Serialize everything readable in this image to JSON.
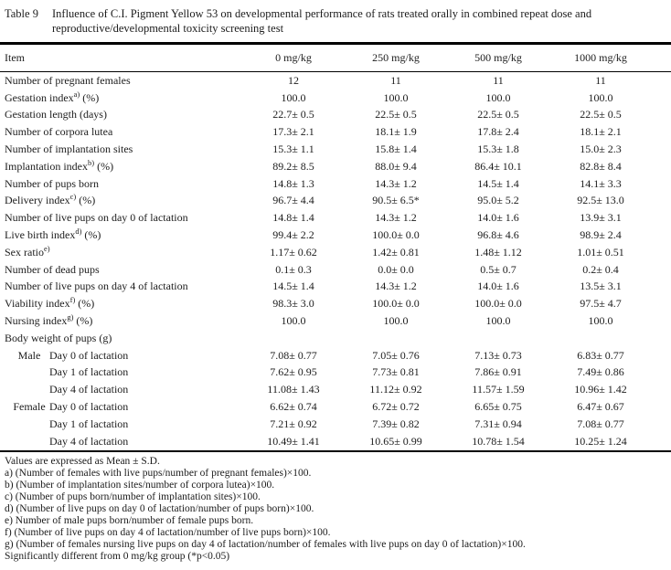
{
  "caption": {
    "label": "Table 9",
    "text": "Influence of C.I. Pigment Yellow 53 on developmental performance of rats treated orally in combined repeat dose and reproductive/developmental toxicity screening test"
  },
  "table": {
    "item_header": "Item",
    "columns": [
      "0 mg/kg",
      "250 mg/kg",
      "500 mg/kg",
      "1000 mg/kg"
    ],
    "rows": [
      {
        "label": "Number of pregnant females",
        "sup": "",
        "suffix": "",
        "values": [
          "12",
          "11",
          "11",
          "11"
        ]
      },
      {
        "label": "Gestation index",
        "sup": "a)",
        "suffix": " (%)",
        "values": [
          "100.0",
          "100.0",
          "100.0",
          "100.0"
        ]
      },
      {
        "label": "Gestation length (days)",
        "sup": "",
        "suffix": "",
        "values": [
          "22.7± 0.5",
          "22.5± 0.5",
          "22.5± 0.5",
          "22.5± 0.5"
        ]
      },
      {
        "label": "Number of corpora lutea",
        "sup": "",
        "suffix": "",
        "values": [
          "17.3± 2.1",
          "18.1± 1.9",
          "17.8± 2.4",
          "18.1± 2.1"
        ]
      },
      {
        "label": "Number of implantation sites",
        "sup": "",
        "suffix": "",
        "values": [
          "15.3± 1.1",
          "15.8± 1.4",
          "15.3± 1.8",
          "15.0± 2.3"
        ]
      },
      {
        "label": "Implantation index",
        "sup": "b)",
        "suffix": " (%)",
        "values": [
          "89.2± 8.5",
          "88.0± 9.4",
          "86.4± 10.1",
          "82.8± 8.4"
        ]
      },
      {
        "label": "Number of pups born",
        "sup": "",
        "suffix": "",
        "values": [
          "14.8± 1.3",
          "14.3± 1.2",
          "14.5± 1.4",
          "14.1± 3.3"
        ]
      },
      {
        "label": "Delivery index",
        "sup": "c)",
        "suffix": " (%)",
        "values": [
          "96.7± 4.4",
          "90.5± 6.5*",
          "95.0± 5.2",
          "92.5± 13.0"
        ]
      },
      {
        "label": "Number of live pups on day 0 of lactation",
        "sup": "",
        "suffix": "",
        "values": [
          "14.8± 1.4",
          "14.3± 1.2",
          "14.0± 1.6",
          "13.9± 3.1"
        ]
      },
      {
        "label": "Live birth index",
        "sup": "d)",
        "suffix": " (%)",
        "values": [
          "99.4± 2.2",
          "100.0± 0.0",
          "96.8± 4.6",
          "98.9± 2.4"
        ]
      },
      {
        "label": "Sex ratio",
        "sup": "e)",
        "suffix": "",
        "values": [
          "1.17± 0.62",
          "1.42± 0.81",
          "1.48± 1.12",
          "1.01± 0.51"
        ]
      },
      {
        "label": "Number of dead pups",
        "sup": "",
        "suffix": "",
        "values": [
          "0.1± 0.3",
          "0.0± 0.0",
          "0.5± 0.7",
          "0.2± 0.4"
        ]
      },
      {
        "label": "Number of live pups on day 4 of lactation",
        "sup": "",
        "suffix": "",
        "values": [
          "14.5± 1.4",
          "14.3± 1.2",
          "14.0± 1.6",
          "13.5± 3.1"
        ]
      },
      {
        "label": "Viability index",
        "sup": "f)",
        "suffix": " (%)",
        "values": [
          "98.3± 3.0",
          "100.0± 0.0",
          "100.0± 0.0",
          "97.5± 4.7"
        ]
      },
      {
        "label": "Nursing index",
        "sup": "g)",
        "suffix": " (%)",
        "values": [
          "100.0",
          "100.0",
          "100.0",
          "100.0"
        ]
      },
      {
        "label": "Body weight of pups (g)",
        "sup": "",
        "suffix": "",
        "values": [
          "",
          "",
          "",
          ""
        ]
      },
      {
        "group": "Male",
        "label": "Day 0 of lactation",
        "values": [
          "7.08± 0.77",
          "7.05± 0.76",
          "7.13± 0.73",
          "6.83± 0.77"
        ]
      },
      {
        "group": "",
        "label": "Day 1 of lactation",
        "values": [
          "7.62± 0.95",
          "7.73± 0.81",
          "7.86± 0.91",
          "7.49± 0.86"
        ]
      },
      {
        "group": "",
        "label": "Day 4 of lactation",
        "values": [
          "11.08± 1.43",
          "11.12± 0.92",
          "11.57± 1.59",
          "10.96± 1.42"
        ]
      },
      {
        "group": "Female",
        "label": "Day 0 of lactation",
        "values": [
          "6.62± 0.74",
          "6.72± 0.72",
          "6.65± 0.75",
          "6.47± 0.67"
        ]
      },
      {
        "group": "",
        "label": "Day 1 of lactation",
        "values": [
          "7.21± 0.92",
          "7.39± 0.82",
          "7.31± 0.94",
          "7.08± 0.77"
        ]
      },
      {
        "group": "",
        "label": "Day 4 of lactation",
        "values": [
          "10.49± 1.41",
          "10.65± 0.99",
          "10.78± 1.54",
          "10.25± 1.24"
        ]
      }
    ]
  },
  "footnotes": [
    "Values are expressed as Mean ± S.D.",
    "a) (Number of females with live pups/number of pregnant females)×100.",
    "b) (Number of implantation sites/number of corpora lutea)×100.",
    "c) (Number of pups born/number of implantation sites)×100.",
    "d) (Number of live pups on day 0 of lactation/number of pups born)×100.",
    "e) Number of male pups born/number of female pups born.",
    "f) (Number of live pups on day 4 of lactation/number of live pups born)×100.",
    "g) (Number of females nursing live pups on day 4 of lactation/number of females with live pups on day 0 of lactation)×100.",
    "Significantly different from 0 mg/kg group (*p<0.05)"
  ]
}
